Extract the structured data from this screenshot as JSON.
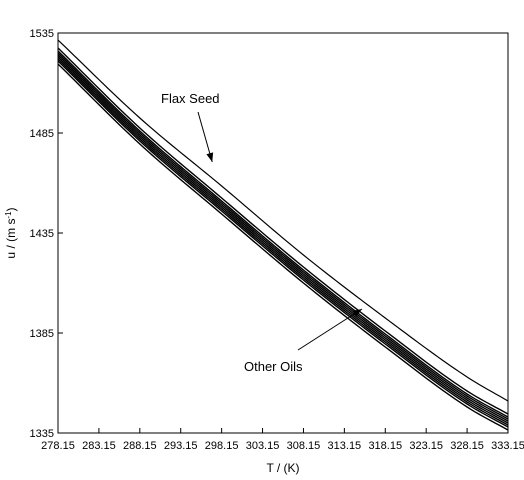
{
  "chart_data": {
    "type": "line",
    "title": "",
    "xlabel": "T / (K)",
    "ylabel_parts": {
      "base": "u / (m s",
      "superscript": "-1",
      "close": ")"
    },
    "xlim": [
      278.15,
      333.15
    ],
    "ylim": [
      1335,
      1535
    ],
    "xticks": [
      "278.15",
      "283.15",
      "288.15",
      "293.15",
      "298.15",
      "303.15",
      "308.15",
      "313.15",
      "318.15",
      "323.15",
      "328.15",
      "333.15"
    ],
    "yticks": [
      "1335",
      "1385",
      "1435",
      "1485",
      "1535"
    ],
    "grid": false,
    "legend": "none",
    "annotations": [
      {
        "text": "Flax Seed",
        "arrow_to": {
          "x": 297.0,
          "y": 1470.5
        }
      },
      {
        "text": "Other Oils",
        "arrow_to": {
          "x": 315.3,
          "y": 1397.0
        }
      }
    ],
    "x": [
      278.15,
      288.15,
      298.15,
      308.15,
      318.15,
      328.15,
      333.15
    ],
    "series": [
      {
        "values": [
          1531.5,
          1492.5,
          1458.5,
          1424.0,
          1392.5,
          1363.0,
          1351.0
        ]
      },
      {
        "values": [
          1527.5,
          1487.5,
          1452.5,
          1418.0,
          1386.0,
          1356.0,
          1344.5
        ]
      },
      {
        "values": [
          1526.0,
          1486.0,
          1451.0,
          1416.5,
          1384.5,
          1354.5,
          1343.0
        ]
      },
      {
        "values": [
          1525.0,
          1485.0,
          1450.0,
          1415.5,
          1383.5,
          1353.5,
          1342.0
        ]
      },
      {
        "values": [
          1524.0,
          1484.0,
          1449.0,
          1414.5,
          1382.5,
          1352.5,
          1341.0
        ]
      },
      {
        "values": [
          1523.0,
          1483.0,
          1448.0,
          1413.5,
          1381.5,
          1351.5,
          1340.0
        ]
      },
      {
        "values": [
          1522.0,
          1482.0,
          1447.0,
          1412.5,
          1380.5,
          1350.5,
          1339.0
        ]
      },
      {
        "values": [
          1521.0,
          1481.0,
          1446.0,
          1411.5,
          1379.5,
          1349.5,
          1338.0
        ]
      },
      {
        "values": [
          1519.5,
          1479.5,
          1444.5,
          1410.0,
          1378.0,
          1348.0,
          1336.5
        ]
      }
    ]
  }
}
